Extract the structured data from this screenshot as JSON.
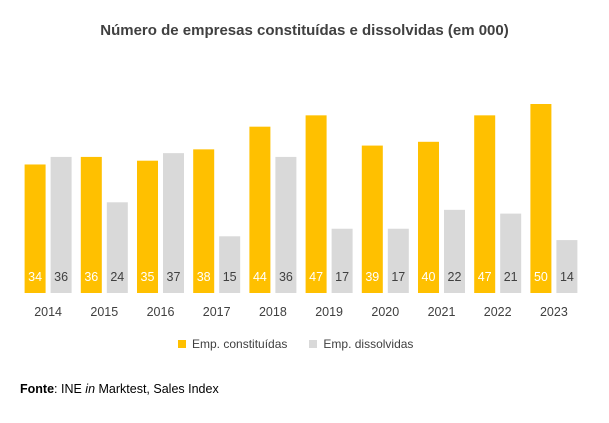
{
  "chart_data": {
    "type": "bar",
    "title": "Número de empresas constituídas e dissolvidas (em 000)",
    "categories": [
      "2014",
      "2015",
      "2016",
      "2017",
      "2018",
      "2019",
      "2020",
      "2021",
      "2022",
      "2023"
    ],
    "series": [
      {
        "name": "Emp. constituídas",
        "color": "#FFC000",
        "label_color": "#ffffff",
        "values": [
          34,
          36,
          35,
          38,
          44,
          47,
          39,
          40,
          47,
          50
        ]
      },
      {
        "name": "Emp. dissolvidas",
        "color": "#D9D9D9",
        "label_color": "#404040",
        "values": [
          36,
          24,
          37,
          15,
          36,
          17,
          17,
          22,
          21,
          14
        ]
      }
    ],
    "xlabel": "",
    "ylabel": "",
    "ylim": [
      0,
      50
    ],
    "grid": false,
    "legend_position": "bottom"
  },
  "source": {
    "label": "Fonte",
    "sep": ": INE ",
    "italic": "in",
    "rest": " Marktest, Sales Index"
  }
}
